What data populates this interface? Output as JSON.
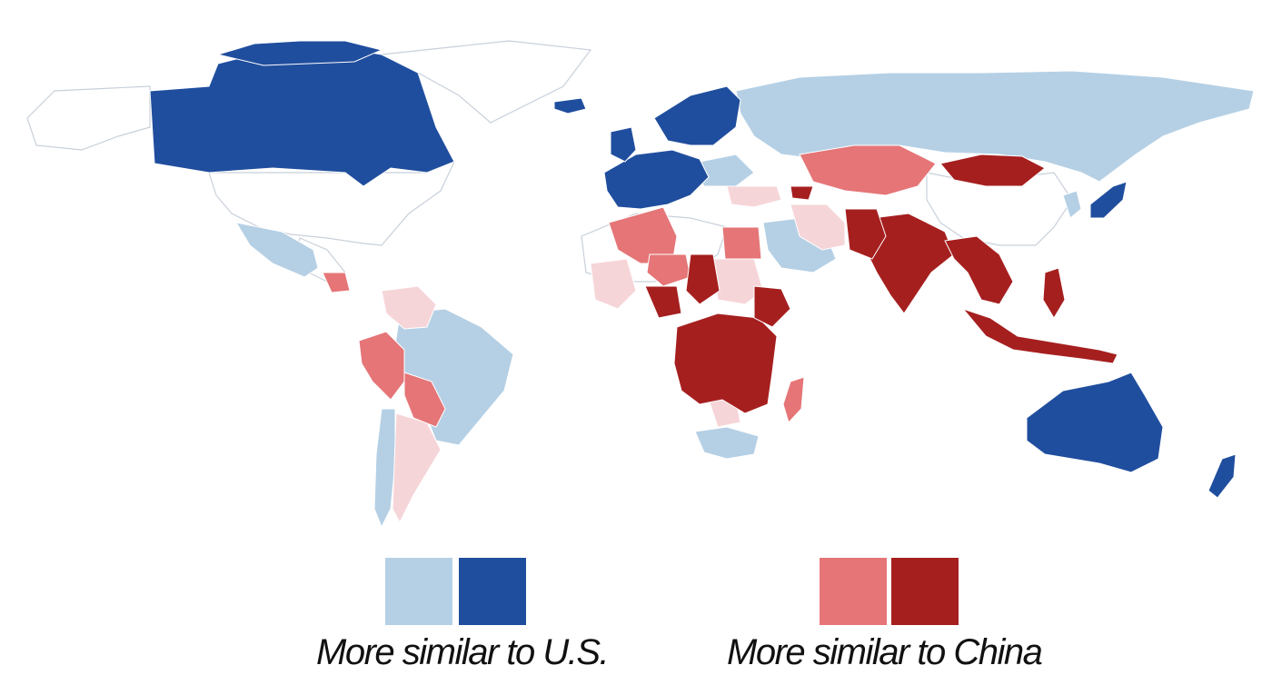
{
  "palette": {
    "us_light": "#b5d0e5",
    "us_dark": "#204e9e",
    "china_light": "#e57577",
    "china_dark": "#a61f1f",
    "china_faint": "#f6d5d8",
    "neutral": "#ffffff",
    "border": "#c8d0da"
  },
  "legend": {
    "us_label": "More similar to U.S.",
    "china_label": "More similar to China"
  }
}
